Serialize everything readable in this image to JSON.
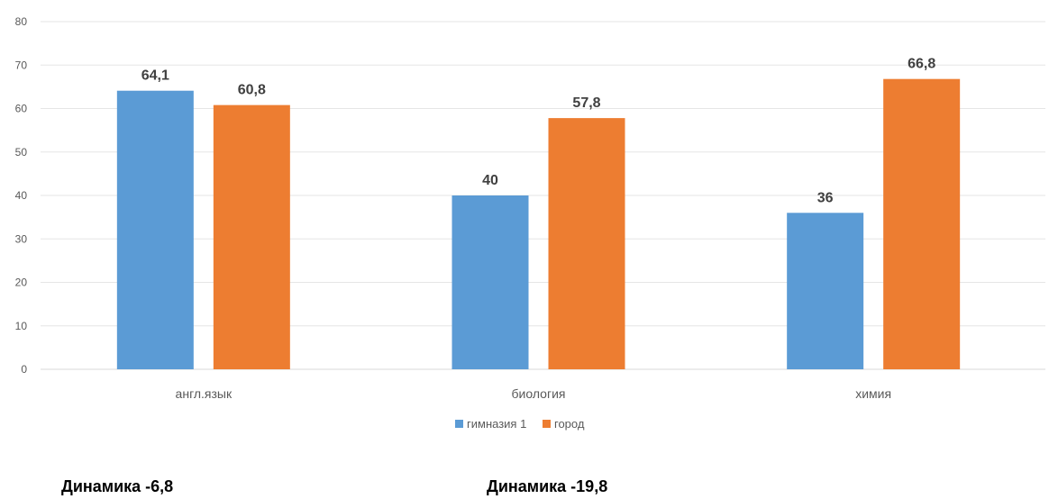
{
  "chart_data": {
    "type": "bar",
    "title": "",
    "xlabel": "",
    "ylabel": "",
    "categories": [
      "англ.язык",
      "биология",
      "химия"
    ],
    "series": [
      {
        "name": "гимназия 1",
        "values": [
          64.1,
          40,
          36
        ],
        "labels": [
          "64,1",
          "40",
          "36"
        ],
        "color": "#5B9BD5"
      },
      {
        "name": "город",
        "values": [
          60.8,
          57.8,
          66.8
        ],
        "labels": [
          "60,8",
          "57,8",
          "66,8"
        ],
        "color": "#ED7D31"
      }
    ],
    "ylim": [
      0,
      80
    ],
    "yticks": [
      0,
      10,
      20,
      30,
      40,
      50,
      60,
      70,
      80
    ],
    "grid": true,
    "legend_position": "bottom"
  },
  "notes": [
    {
      "text": "Динамика -6,8"
    },
    {
      "text": "Динамика -19,8"
    }
  ]
}
